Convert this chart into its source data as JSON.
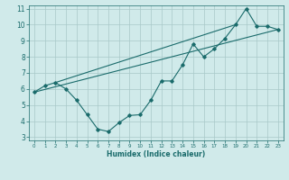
{
  "xlabel": "Humidex (Indice chaleur)",
  "ylabel": "",
  "background_color": "#d0eaea",
  "grid_color": "#a8c8c8",
  "line_color": "#1a6b6b",
  "xlim": [
    -0.5,
    23.5
  ],
  "ylim": [
    2.8,
    11.2
  ],
  "yticks": [
    3,
    4,
    5,
    6,
    7,
    8,
    9,
    10,
    11
  ],
  "xticks": [
    0,
    1,
    2,
    3,
    4,
    5,
    6,
    7,
    8,
    9,
    10,
    11,
    12,
    13,
    14,
    15,
    16,
    17,
    18,
    19,
    20,
    21,
    22,
    23
  ],
  "line1_x": [
    0,
    1,
    2,
    3,
    4,
    5,
    6,
    7,
    8,
    9,
    10,
    11,
    12,
    13,
    14,
    15,
    16,
    17,
    18,
    19,
    20,
    21,
    22,
    23
  ],
  "line1_y": [
    5.8,
    6.2,
    6.4,
    6.0,
    5.3,
    4.4,
    3.5,
    3.35,
    3.9,
    4.35,
    4.4,
    5.3,
    6.5,
    6.5,
    7.5,
    8.8,
    8.0,
    8.5,
    9.15,
    10.0,
    11.0,
    9.9,
    9.9,
    9.7
  ],
  "line2_x": [
    0,
    23
  ],
  "line2_y": [
    5.8,
    9.7
  ],
  "line3_x": [
    2,
    19
  ],
  "line3_y": [
    6.4,
    10.0
  ]
}
